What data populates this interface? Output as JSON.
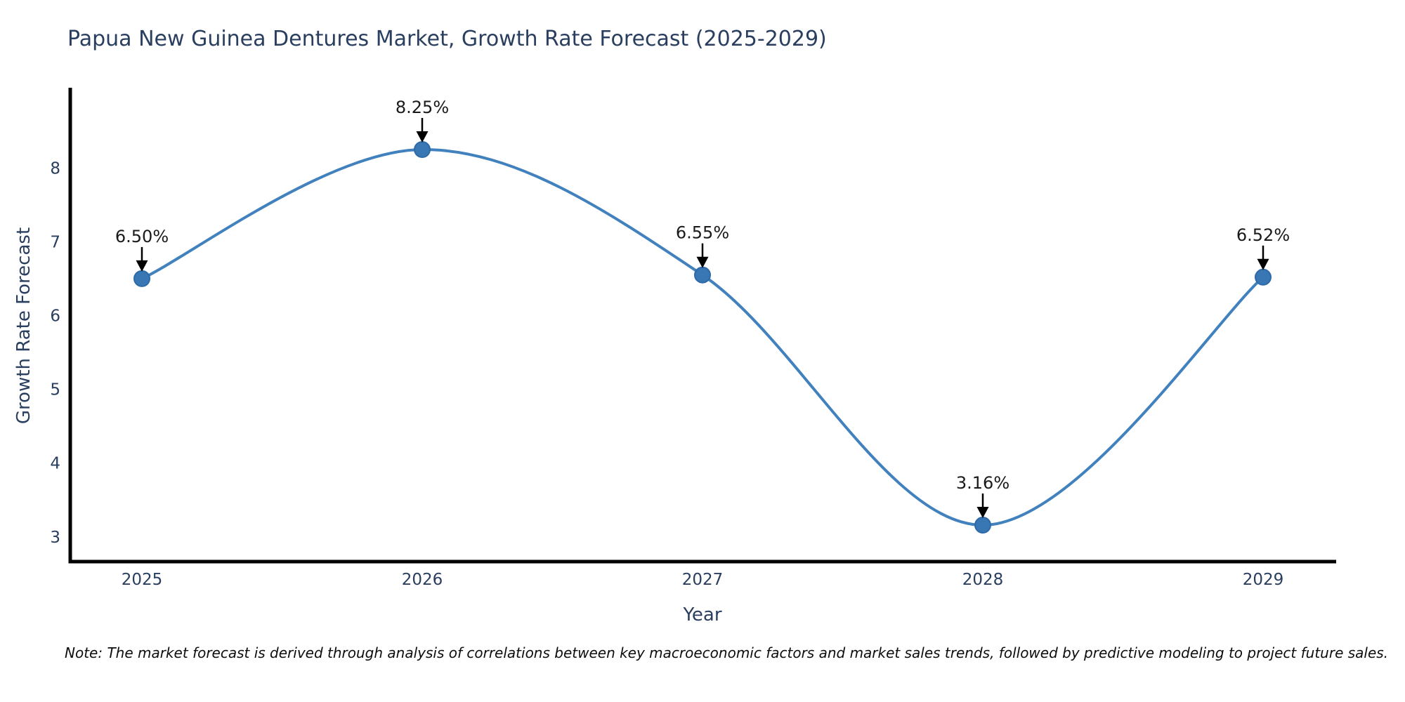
{
  "page": {
    "background": "#ffffff"
  },
  "chart_data": {
    "type": "line",
    "title": "Papua New Guinea Dentures Market, Growth Rate Forecast (2025-2029)",
    "xlabel": "Year",
    "ylabel": "Growth Rate Forecast",
    "x": [
      "2025",
      "2026",
      "2027",
      "2028",
      "2029"
    ],
    "values": [
      6.5,
      8.25,
      6.55,
      3.16,
      6.52
    ],
    "point_labels": [
      "6.50%",
      "8.25%",
      "6.55%",
      "3.16%",
      "6.52%"
    ],
    "yticks": [
      "3",
      "4",
      "5",
      "6",
      "7",
      "8"
    ],
    "ylim": [
      2.66,
      9.1
    ],
    "line_shape": "spline",
    "grid": false,
    "legend": "none",
    "note": "Note: The market forecast is derived through analysis of correlations between key macroeconomic factors and market sales trends, followed by predictive modeling to project future sales.",
    "colors": {
      "line": "#4181bd",
      "marker": "#3876b4",
      "marker_edge": "#2e6aa8",
      "axis": "#000000",
      "text": "#2a3f5f",
      "annotation_text": "#1a1a1a",
      "annotation_arrow": "#000000"
    }
  }
}
